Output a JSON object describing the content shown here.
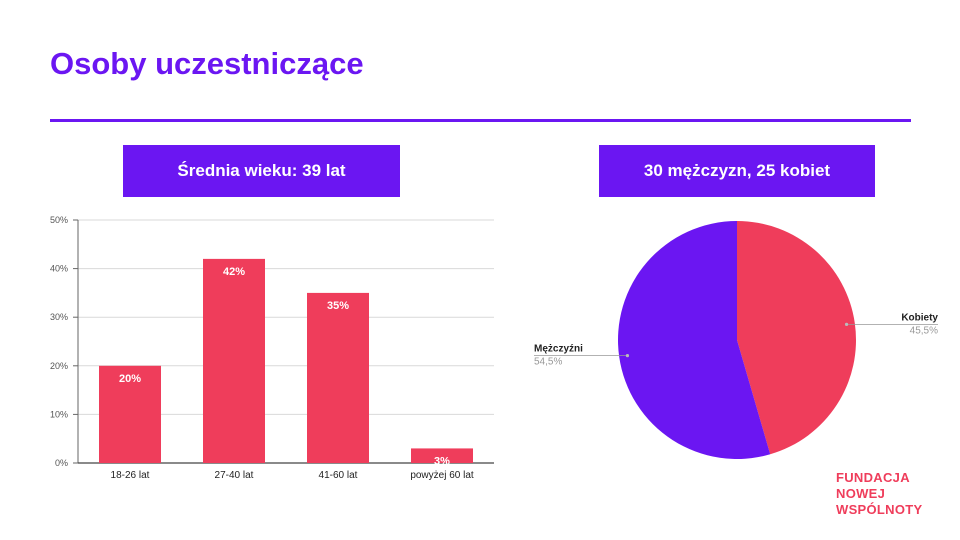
{
  "slide": {
    "title": "Osoby uczestniczące",
    "age_banner": "Średnia wieku: 39 lat",
    "gender_banner": "30 mężczyzn, 25 kobiet"
  },
  "logo": {
    "lines": [
      "FUNDACJA",
      "NOWEJ",
      "WSPÓLNOTY"
    ],
    "color": "#ef3d5b"
  },
  "colors": {
    "accent": "#6b16f2",
    "bar": "#ef3d5b"
  },
  "chart_data": [
    {
      "type": "bar",
      "categories": [
        "18-26 lat",
        "27-40 lat",
        "41-60 lat",
        "powyżej 60 lat"
      ],
      "values": [
        20,
        42,
        35,
        3
      ],
      "data_labels": [
        "20%",
        "42%",
        "35%",
        "3%"
      ],
      "yticks": [
        0,
        10,
        20,
        30,
        40,
        50
      ],
      "ytick_labels": [
        "0%",
        "10%",
        "20%",
        "30%",
        "40%",
        "50%"
      ],
      "ylim": [
        0,
        50
      ],
      "grid": true,
      "bar_color": "#ef3d5b"
    },
    {
      "type": "pie",
      "slices": [
        {
          "label": "Kobiety",
          "value": 45.5,
          "display": "45,5%",
          "color": "#ef3d5b"
        },
        {
          "label": "Mężczyźni",
          "value": 54.5,
          "display": "54,5%",
          "color": "#6b16f2"
        }
      ]
    }
  ]
}
